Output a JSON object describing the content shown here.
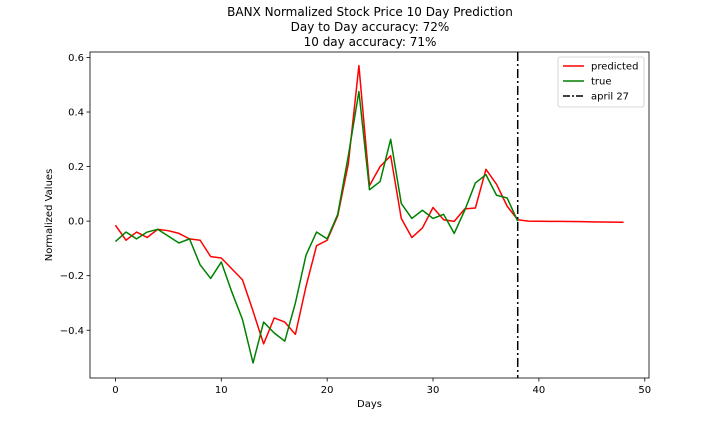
{
  "chart_data": {
    "type": "line",
    "title": [
      "BANX Normalized Stock Price 10 Day Prediction",
      "Day to Day accuracy: 72%",
      "10 day accuracy: 71%"
    ],
    "xlabel": "Days",
    "ylabel": "Normalized Values",
    "xlim": [
      -2.4,
      50.4
    ],
    "ylim": [
      -0.575,
      0.62
    ],
    "xticks": [
      0,
      10,
      20,
      30,
      40,
      50
    ],
    "xtick_labels": [
      "0",
      "10",
      "20",
      "30",
      "40",
      "50"
    ],
    "yticks": [
      0.6,
      0.4,
      0.2,
      0.0,
      -0.2,
      -0.4
    ],
    "ytick_labels": [
      "0.6",
      "0.4",
      "0.2",
      "0.0",
      "−0.2",
      "−0.4"
    ],
    "grid": false,
    "legend_position": "top-right",
    "series": [
      {
        "name": "predicted",
        "color": "#ff0000",
        "x": [
          0,
          1,
          2,
          3,
          4,
          5,
          6,
          7,
          8,
          9,
          10,
          11,
          12,
          13,
          14,
          15,
          16,
          17,
          18,
          19,
          20,
          21,
          22,
          23,
          24,
          25,
          26,
          27,
          28,
          29,
          30,
          31,
          32,
          33,
          34,
          35,
          36,
          37,
          38,
          39,
          40,
          41,
          42,
          43,
          44,
          45,
          46,
          47,
          48
        ],
        "y": [
          -0.015,
          -0.07,
          -0.04,
          -0.06,
          -0.03,
          -0.035,
          -0.045,
          -0.065,
          -0.07,
          -0.13,
          -0.135,
          -0.175,
          -0.215,
          -0.33,
          -0.45,
          -0.355,
          -0.37,
          -0.415,
          -0.24,
          -0.09,
          -0.07,
          0.02,
          0.21,
          0.57,
          0.13,
          0.2,
          0.24,
          0.01,
          -0.06,
          -0.025,
          0.05,
          0.005,
          -0.001,
          0.045,
          0.048,
          0.19,
          0.135,
          0.055,
          0.005,
          0.0,
          -0.0005,
          -0.0008,
          -0.001,
          -0.0015,
          -0.002,
          -0.0025,
          -0.003,
          -0.0035,
          -0.004
        ]
      },
      {
        "name": "true",
        "color": "#008000",
        "x": [
          0,
          1,
          2,
          3,
          4,
          5,
          6,
          7,
          8,
          9,
          10,
          11,
          12,
          13,
          14,
          15,
          16,
          17,
          18,
          19,
          20,
          21,
          22,
          23,
          24,
          25,
          26,
          27,
          28,
          29,
          30,
          31,
          32,
          33,
          34,
          35,
          36,
          37,
          38
        ],
        "y": [
          -0.075,
          -0.04,
          -0.065,
          -0.04,
          -0.03,
          -0.055,
          -0.08,
          -0.065,
          -0.16,
          -0.21,
          -0.15,
          -0.26,
          -0.36,
          -0.52,
          -0.37,
          -0.41,
          -0.44,
          -0.3,
          -0.125,
          -0.04,
          -0.065,
          0.025,
          0.24,
          0.475,
          0.115,
          0.145,
          0.3,
          0.065,
          0.01,
          0.04,
          0.01,
          0.025,
          -0.045,
          0.04,
          0.14,
          0.17,
          0.095,
          0.085,
          0.0
        ]
      },
      {
        "name": "april 27",
        "color": "#000000",
        "style": "dashdot",
        "vertical_x": 38
      }
    ]
  }
}
